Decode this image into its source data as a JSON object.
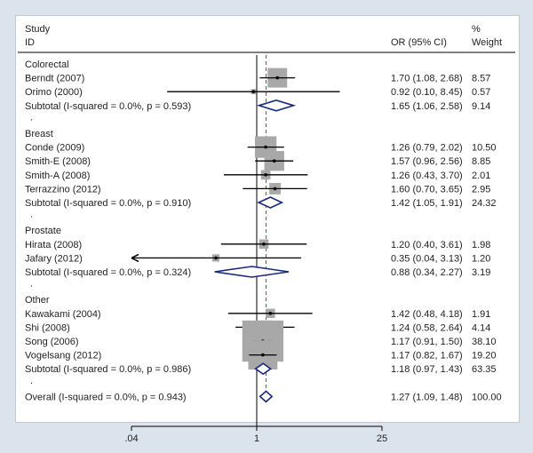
{
  "chart_data": {
    "type": "forest",
    "header": {
      "study_line1": "Study",
      "study_line2": "ID",
      "or_label": "OR (95% CI)",
      "weight_line1": "%",
      "weight_line2": "Weight"
    },
    "x_scale": "log",
    "x_ticks": [
      {
        "value": 0.04,
        "label": ".04"
      },
      {
        "value": 1,
        "label": "1"
      },
      {
        "value": 25,
        "label": "25"
      }
    ],
    "null_value": 1,
    "overall_or": 1.27,
    "rows": [
      {
        "kind": "group",
        "label": "Colorectal"
      },
      {
        "kind": "study",
        "label": "Berndt (2007)",
        "or": 1.7,
        "lo": 1.08,
        "hi": 2.68,
        "weight": 8.57,
        "ci_text": "1.70 (1.08, 2.68)",
        "weight_text": "8.57"
      },
      {
        "kind": "study",
        "label": "Orimo (2000)",
        "or": 0.92,
        "lo": 0.1,
        "hi": 8.45,
        "weight": 0.57,
        "ci_text": "0.92 (0.10, 8.45)",
        "weight_text": "0.57"
      },
      {
        "kind": "subtotal",
        "label": "Subtotal  (I-squared = 0.0%, p = 0.593)",
        "or": 1.65,
        "lo": 1.06,
        "hi": 2.58,
        "ci_text": "1.65 (1.06, 2.58)",
        "weight_text": "9.14"
      },
      {
        "kind": "dot",
        "label": "."
      },
      {
        "kind": "group",
        "label": "Breast"
      },
      {
        "kind": "study",
        "label": "Conde (2009)",
        "or": 1.26,
        "lo": 0.79,
        "hi": 2.02,
        "weight": 10.5,
        "ci_text": "1.26 (0.79, 2.02)",
        "weight_text": "10.50"
      },
      {
        "kind": "study",
        "label": "Smith-E (2008)",
        "or": 1.57,
        "lo": 0.96,
        "hi": 2.56,
        "weight": 8.85,
        "ci_text": "1.57 (0.96, 2.56)",
        "weight_text": "8.85"
      },
      {
        "kind": "study",
        "label": "Smith-A (2008)",
        "or": 1.26,
        "lo": 0.43,
        "hi": 3.7,
        "weight": 2.01,
        "ci_text": "1.26 (0.43, 3.70)",
        "weight_text": "2.01"
      },
      {
        "kind": "study",
        "label": "Terrazzino (2012)",
        "or": 1.6,
        "lo": 0.7,
        "hi": 3.65,
        "weight": 2.95,
        "ci_text": "1.60 (0.70, 3.65)",
        "weight_text": "2.95"
      },
      {
        "kind": "subtotal",
        "label": "Subtotal  (I-squared = 0.0%, p = 0.910)",
        "or": 1.42,
        "lo": 1.05,
        "hi": 1.91,
        "ci_text": "1.42 (1.05, 1.91)",
        "weight_text": "24.32"
      },
      {
        "kind": "dot",
        "label": "."
      },
      {
        "kind": "group",
        "label": "Prostate"
      },
      {
        "kind": "study",
        "label": "Hirata (2008)",
        "or": 1.2,
        "lo": 0.4,
        "hi": 3.61,
        "weight": 1.98,
        "ci_text": "1.20 (0.40, 3.61)",
        "weight_text": "1.98"
      },
      {
        "kind": "study",
        "label": "Jafary (2012)",
        "or": 0.35,
        "lo": 0.04,
        "hi": 3.13,
        "weight": 1.2,
        "ci_text": "0.35 (0.04, 3.13)",
        "weight_text": "1.20",
        "arrow_left": true
      },
      {
        "kind": "subtotal",
        "label": "Subtotal  (I-squared = 0.0%, p = 0.324)",
        "or": 0.88,
        "lo": 0.34,
        "hi": 2.27,
        "ci_text": "0.88 (0.34, 2.27)",
        "weight_text": "3.19"
      },
      {
        "kind": "dot",
        "label": "."
      },
      {
        "kind": "group",
        "label": "Other"
      },
      {
        "kind": "study",
        "label": "Kawakami (2004)",
        "or": 1.42,
        "lo": 0.48,
        "hi": 4.18,
        "weight": 1.91,
        "ci_text": "1.42 (0.48, 4.18)",
        "weight_text": "1.91"
      },
      {
        "kind": "study",
        "label": "Shi (2008)",
        "or": 1.24,
        "lo": 0.58,
        "hi": 2.64,
        "weight": 4.14,
        "ci_text": "1.24 (0.58, 2.64)",
        "weight_text": "4.14"
      },
      {
        "kind": "study",
        "label": "Song (2006)",
        "or": 1.17,
        "lo": 0.91,
        "hi": 1.5,
        "weight": 38.1,
        "ci_text": "1.17 (0.91, 1.50)",
        "weight_text": "38.10"
      },
      {
        "kind": "study",
        "label": "Vogelsang (2012)",
        "or": 1.17,
        "lo": 0.82,
        "hi": 1.67,
        "weight": 19.2,
        "ci_text": "1.17 (0.82, 1.67)",
        "weight_text": "19.20"
      },
      {
        "kind": "subtotal",
        "label": "Subtotal  (I-squared = 0.0%, p = 0.986)",
        "or": 1.18,
        "lo": 0.97,
        "hi": 1.43,
        "ci_text": "1.18 (0.97, 1.43)",
        "weight_text": "63.35"
      },
      {
        "kind": "dot",
        "label": "."
      },
      {
        "kind": "overall",
        "label": "Overall  (I-squared = 0.0%, p = 0.943)",
        "or": 1.27,
        "lo": 1.09,
        "hi": 1.48,
        "ci_text": "1.27 (1.09, 1.48)",
        "weight_text": "100.00"
      }
    ],
    "colors": {
      "box": "#a8a8a8",
      "diamond": "#1a2a7a",
      "overall_line": "#c03040",
      "line": "#000000",
      "text": "#222222",
      "frame_bg": "#dbe4ec"
    }
  }
}
